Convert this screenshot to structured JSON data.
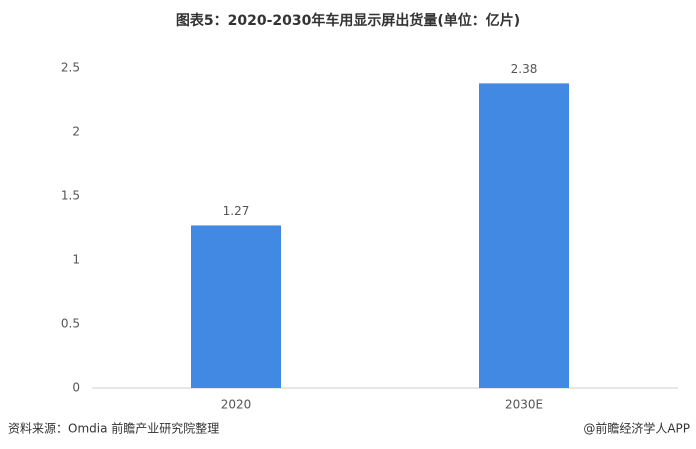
{
  "chart_data": {
    "type": "bar",
    "title": "图表5：2020-2030年车用显示屏出货量(单位：亿片)",
    "categories": [
      "2020",
      "2030E"
    ],
    "values": [
      1.27,
      2.38
    ],
    "color": "#4189e3",
    "ylim": [
      0,
      2.5
    ],
    "yticks": [
      0,
      0.5,
      1,
      1.5,
      2,
      2.5
    ],
    "grid": false,
    "source": "资料来源：Omdia 前瞻产业研究院整理",
    "credit": "@前瞻经济学人APP"
  }
}
